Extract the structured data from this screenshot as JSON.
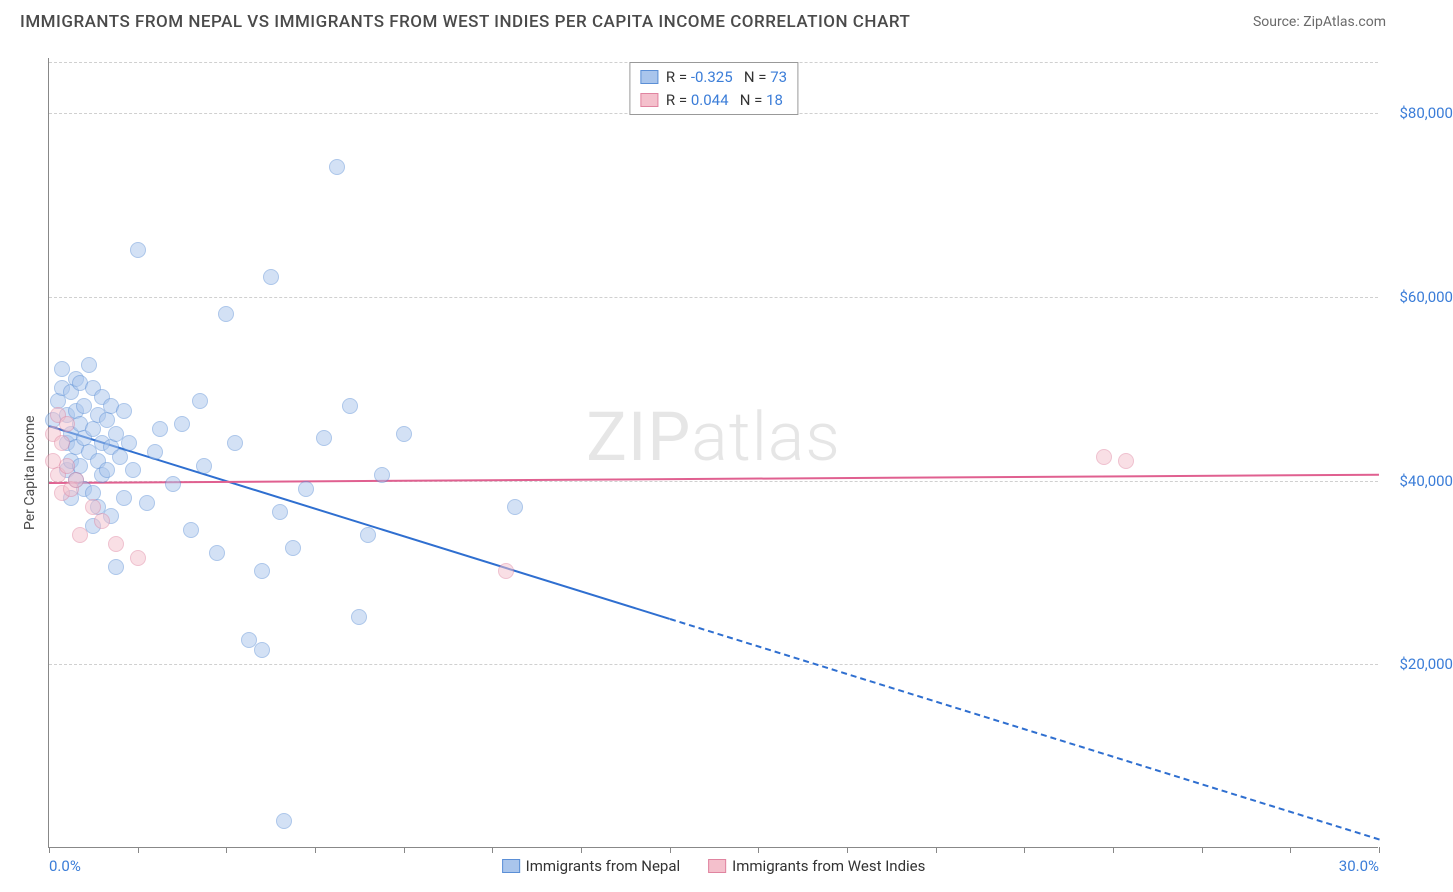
{
  "header": {
    "title": "IMMIGRANTS FROM NEPAL VS IMMIGRANTS FROM WEST INDIES PER CAPITA INCOME CORRELATION CHART",
    "source": "Source: ZipAtlas.com"
  },
  "watermark": {
    "part1": "ZIP",
    "part2": "atlas"
  },
  "chart": {
    "type": "scatter",
    "ylabel": "Per Capita Income",
    "xlim": [
      0,
      30
    ],
    "ylim": [
      0,
      86000
    ],
    "yticks": [
      {
        "v": 20000,
        "label": "$20,000"
      },
      {
        "v": 40000,
        "label": "$40,000"
      },
      {
        "v": 60000,
        "label": "$60,000"
      },
      {
        "v": 80000,
        "label": "$80,000"
      }
    ],
    "xticks_major": [
      0,
      30
    ],
    "xtick_labels": {
      "left": "0.0%",
      "right": "30.0%"
    },
    "xticks_minor_step": 2,
    "grid_color": "#d0d0d0",
    "background_color": "#ffffff",
    "axis_color": "#888888",
    "marker_radius": 8,
    "marker_opacity": 0.5,
    "series": [
      {
        "name": "Immigrants from Nepal",
        "legend_label": "Immigrants from Nepal",
        "color_fill": "#a9c5ec",
        "color_stroke": "#5b8fd6",
        "line_color": "#2f6fd0",
        "r_label": "R =",
        "r_value": "-0.325",
        "n_label": "N =",
        "n_value": "73",
        "regression": {
          "x1": 0,
          "y1": 46000,
          "x2": 30,
          "y2": 1000,
          "dash_after_x": 14
        },
        "points": [
          [
            0.1,
            46500
          ],
          [
            0.2,
            48500
          ],
          [
            0.3,
            50000
          ],
          [
            0.3,
            52000
          ],
          [
            0.4,
            47000
          ],
          [
            0.4,
            44000
          ],
          [
            0.4,
            41000
          ],
          [
            0.5,
            49500
          ],
          [
            0.5,
            45000
          ],
          [
            0.5,
            42000
          ],
          [
            0.5,
            38000
          ],
          [
            0.6,
            51000
          ],
          [
            0.6,
            47500
          ],
          [
            0.6,
            43500
          ],
          [
            0.6,
            40000
          ],
          [
            0.7,
            50500
          ],
          [
            0.7,
            46000
          ],
          [
            0.7,
            41500
          ],
          [
            0.8,
            48000
          ],
          [
            0.8,
            44500
          ],
          [
            0.8,
            39000
          ],
          [
            0.9,
            52500
          ],
          [
            0.9,
            43000
          ],
          [
            1.0,
            50000
          ],
          [
            1.0,
            45500
          ],
          [
            1.0,
            38500
          ],
          [
            1.0,
            35000
          ],
          [
            1.1,
            47000
          ],
          [
            1.1,
            42000
          ],
          [
            1.1,
            37000
          ],
          [
            1.2,
            49000
          ],
          [
            1.2,
            44000
          ],
          [
            1.2,
            40500
          ],
          [
            1.3,
            46500
          ],
          [
            1.3,
            41000
          ],
          [
            1.4,
            48000
          ],
          [
            1.4,
            43500
          ],
          [
            1.4,
            36000
          ],
          [
            1.5,
            45000
          ],
          [
            1.5,
            30500
          ],
          [
            1.6,
            42500
          ],
          [
            1.7,
            47500
          ],
          [
            1.7,
            38000
          ],
          [
            1.8,
            44000
          ],
          [
            1.9,
            41000
          ],
          [
            2.0,
            65000
          ],
          [
            2.2,
            37500
          ],
          [
            2.4,
            43000
          ],
          [
            2.5,
            45500
          ],
          [
            2.8,
            39500
          ],
          [
            3.0,
            46000
          ],
          [
            3.2,
            34500
          ],
          [
            3.4,
            48500
          ],
          [
            3.5,
            41500
          ],
          [
            3.8,
            32000
          ],
          [
            4.0,
            58000
          ],
          [
            4.2,
            44000
          ],
          [
            4.5,
            22500
          ],
          [
            4.8,
            21500
          ],
          [
            4.8,
            30000
          ],
          [
            5.0,
            62000
          ],
          [
            5.2,
            36500
          ],
          [
            5.3,
            2800
          ],
          [
            5.5,
            32500
          ],
          [
            5.8,
            39000
          ],
          [
            6.2,
            44500
          ],
          [
            6.5,
            74000
          ],
          [
            6.8,
            48000
          ],
          [
            7.0,
            25000
          ],
          [
            7.2,
            34000
          ],
          [
            7.5,
            40500
          ],
          [
            8.0,
            45000
          ],
          [
            10.5,
            37000
          ]
        ]
      },
      {
        "name": "Immigrants from West Indies",
        "legend_label": "Immigrants from West Indies",
        "color_fill": "#f4c0cc",
        "color_stroke": "#e084a0",
        "line_color": "#e06090",
        "r_label": "R =",
        "r_value": "0.044",
        "n_label": "N =",
        "n_value": "18",
        "regression": {
          "x1": 0,
          "y1": 39800,
          "x2": 30,
          "y2": 40700,
          "dash_after_x": 30
        },
        "points": [
          [
            0.1,
            45000
          ],
          [
            0.1,
            42000
          ],
          [
            0.2,
            47000
          ],
          [
            0.2,
            40500
          ],
          [
            0.3,
            44000
          ],
          [
            0.3,
            38500
          ],
          [
            0.4,
            41500
          ],
          [
            0.4,
            46000
          ],
          [
            0.5,
            39000
          ],
          [
            0.6,
            40000
          ],
          [
            0.7,
            34000
          ],
          [
            1.0,
            37000
          ],
          [
            1.2,
            35500
          ],
          [
            1.5,
            33000
          ],
          [
            2.0,
            31500
          ],
          [
            10.3,
            30000
          ],
          [
            23.8,
            42500
          ],
          [
            24.3,
            42000
          ]
        ]
      }
    ]
  }
}
